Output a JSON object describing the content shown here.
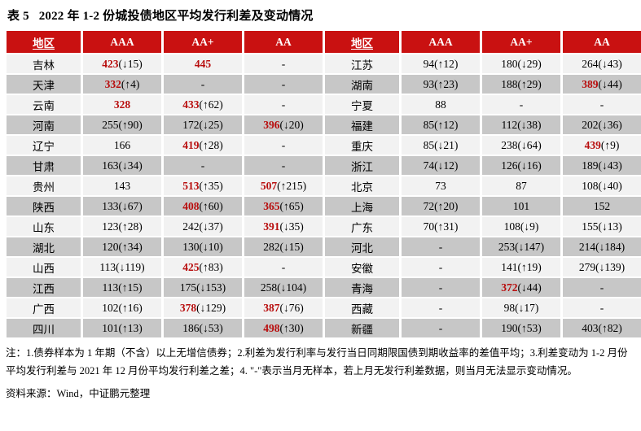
{
  "title": "表 5   2022 年 1-2 份城投债地区平均发行利差及变动情况",
  "note": "注：1.债券样本为 1 年期（不含）以上无增信债券；2.利差为发行利率与发行当日同期限国债到期收益率的差值平均；3.利差变动为 1-2 月份平均发行利差与 2021 年 12 月份平均发行利差之差；4. \"-\"表示当月无样本，若上月无发行利差数据，则当月无法显示变动情况。",
  "source": "资料来源：Wind，中证鹏元整理",
  "colors": {
    "header_bg": "#C91111",
    "header_text": "#FFFFFF",
    "row_light": "#F2F2F2",
    "row_dark": "#C7C7C7",
    "highlight_red": "#B80D0D"
  },
  "table": {
    "headers": [
      "地区",
      "AAA",
      "AA+",
      "AA",
      "地区",
      "AAA",
      "AA+",
      "AA"
    ],
    "rows": [
      [
        {
          "v": "吉林",
          "region": true
        },
        {
          "v": "423",
          "c": "(↓15)",
          "red": true
        },
        {
          "v": "445",
          "red": true
        },
        {
          "v": "-"
        },
        {
          "v": "江苏",
          "region": true
        },
        {
          "v": "94",
          "c": "(↑12)"
        },
        {
          "v": "180",
          "c": "(↓29)"
        },
        {
          "v": "264",
          "c": "(↓43)"
        }
      ],
      [
        {
          "v": "天津",
          "region": true
        },
        {
          "v": "332",
          "c": "(↑4)",
          "red": true
        },
        {
          "v": "-"
        },
        {
          "v": "-"
        },
        {
          "v": "湖南",
          "region": true
        },
        {
          "v": "93",
          "c": "(↑23)"
        },
        {
          "v": "188",
          "c": "(↑29)"
        },
        {
          "v": "389",
          "c": "(↓44)",
          "red": true
        }
      ],
      [
        {
          "v": "云南",
          "region": true
        },
        {
          "v": "328",
          "red": true
        },
        {
          "v": "433",
          "c": "(↑62)",
          "red": true
        },
        {
          "v": "-"
        },
        {
          "v": "宁夏",
          "region": true
        },
        {
          "v": "88"
        },
        {
          "v": "-"
        },
        {
          "v": "-"
        }
      ],
      [
        {
          "v": "河南",
          "region": true
        },
        {
          "v": "255",
          "c": "(↑90)"
        },
        {
          "v": "172",
          "c": "(↓25)"
        },
        {
          "v": "396",
          "c": "(↓20)",
          "red": true
        },
        {
          "v": "福建",
          "region": true
        },
        {
          "v": "85",
          "c": "(↑12)"
        },
        {
          "v": "112",
          "c": "(↓38)"
        },
        {
          "v": "202",
          "c": "(↓36)"
        }
      ],
      [
        {
          "v": "辽宁",
          "region": true
        },
        {
          "v": "166"
        },
        {
          "v": "419",
          "c": "(↑28)",
          "red": true
        },
        {
          "v": "-"
        },
        {
          "v": "重庆",
          "region": true
        },
        {
          "v": "85",
          "c": "(↓21)"
        },
        {
          "v": "238",
          "c": "(↓64)"
        },
        {
          "v": "439",
          "c": "(↑9)",
          "red": true
        }
      ],
      [
        {
          "v": "甘肃",
          "region": true
        },
        {
          "v": "163",
          "c": "(↓34)"
        },
        {
          "v": "-"
        },
        {
          "v": "-"
        },
        {
          "v": "浙江",
          "region": true
        },
        {
          "v": "74",
          "c": "(↓12)"
        },
        {
          "v": "126",
          "c": "(↓16)"
        },
        {
          "v": "189",
          "c": "(↓43)"
        }
      ],
      [
        {
          "v": "贵州",
          "region": true
        },
        {
          "v": "143"
        },
        {
          "v": "513",
          "c": "(↑35)",
          "red": true
        },
        {
          "v": "507",
          "c": "(↑215)",
          "red": true
        },
        {
          "v": "北京",
          "region": true
        },
        {
          "v": "73"
        },
        {
          "v": "87"
        },
        {
          "v": "108",
          "c": "(↓40)"
        }
      ],
      [
        {
          "v": "陕西",
          "region": true
        },
        {
          "v": "133",
          "c": "(↓67)"
        },
        {
          "v": "408",
          "c": "(↑60)",
          "red": true
        },
        {
          "v": "365",
          "c": "(↑65)",
          "red": true
        },
        {
          "v": "上海",
          "region": true
        },
        {
          "v": "72",
          "c": "(↑20)"
        },
        {
          "v": "101"
        },
        {
          "v": "152"
        }
      ],
      [
        {
          "v": "山东",
          "region": true
        },
        {
          "v": "123",
          "c": "(↑28)"
        },
        {
          "v": "242",
          "c": "(↓37)"
        },
        {
          "v": "391",
          "c": "(↓35)",
          "red": true
        },
        {
          "v": "广东",
          "region": true
        },
        {
          "v": "70",
          "c": "(↑31)"
        },
        {
          "v": "108",
          "c": "(↓9)"
        },
        {
          "v": "155",
          "c": "(↓13)"
        }
      ],
      [
        {
          "v": "湖北",
          "region": true
        },
        {
          "v": "120",
          "c": "(↑34)"
        },
        {
          "v": "130",
          "c": "(↓10)"
        },
        {
          "v": "282",
          "c": "(↓15)"
        },
        {
          "v": "河北",
          "region": true
        },
        {
          "v": "-"
        },
        {
          "v": "253",
          "c": "(↓147)"
        },
        {
          "v": "214",
          "c": "(↓184)"
        }
      ],
      [
        {
          "v": "山西",
          "region": true
        },
        {
          "v": "113",
          "c": "(↓119)"
        },
        {
          "v": "425",
          "c": "(↑83)",
          "red": true
        },
        {
          "v": "-"
        },
        {
          "v": "安徽",
          "region": true
        },
        {
          "v": "-"
        },
        {
          "v": "141",
          "c": "(↑19)"
        },
        {
          "v": "279",
          "c": "(↓139)"
        }
      ],
      [
        {
          "v": "江西",
          "region": true
        },
        {
          "v": "113",
          "c": "(↑15)"
        },
        {
          "v": "175",
          "c": "(↓153)"
        },
        {
          "v": "258",
          "c": "(↓104)"
        },
        {
          "v": "青海",
          "region": true
        },
        {
          "v": "-"
        },
        {
          "v": "372",
          "c": "(↓44)",
          "red": true
        },
        {
          "v": "-"
        }
      ],
      [
        {
          "v": "广西",
          "region": true
        },
        {
          "v": "102",
          "c": "(↑16)"
        },
        {
          "v": "378",
          "c": "(↓129)",
          "red": true
        },
        {
          "v": "387",
          "c": "(↓76)",
          "red": true
        },
        {
          "v": "西藏",
          "region": true
        },
        {
          "v": "-"
        },
        {
          "v": "98",
          "c": "(↓17)"
        },
        {
          "v": "-"
        }
      ],
      [
        {
          "v": "四川",
          "region": true
        },
        {
          "v": "101",
          "c": "(↑13)"
        },
        {
          "v": "186",
          "c": "(↓53)"
        },
        {
          "v": "498",
          "c": "(↑30)",
          "red": true
        },
        {
          "v": "新疆",
          "region": true
        },
        {
          "v": "-"
        },
        {
          "v": "190",
          "c": "(↑53)"
        },
        {
          "v": "403",
          "c": "(↑82)"
        }
      ]
    ]
  }
}
